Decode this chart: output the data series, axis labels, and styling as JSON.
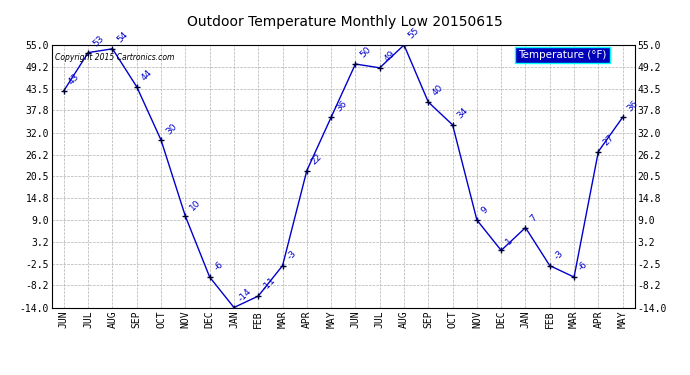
{
  "title": "Outdoor Temperature Monthly Low 20150615",
  "copyright": "Copyright 2015 Cartronics.com",
  "legend_label": "Temperature (°F)",
  "months": [
    "JUN",
    "JUL",
    "AUG",
    "SEP",
    "OCT",
    "NOV",
    "DEC",
    "JAN",
    "FEB",
    "MAR",
    "APR",
    "MAY",
    "JUN",
    "JUL",
    "AUG",
    "SEP",
    "OCT",
    "NOV",
    "DEC",
    "JAN",
    "FEB",
    "MAR",
    "APR",
    "MAY"
  ],
  "values": [
    43,
    53,
    54,
    44,
    30,
    10,
    -6,
    -14,
    -11,
    -3,
    22,
    36,
    50,
    49,
    55,
    40,
    34,
    9,
    1,
    7,
    -3,
    -6,
    27,
    36
  ],
  "ylim": [
    -14.0,
    55.0
  ],
  "yticks": [
    55.0,
    49.2,
    43.5,
    37.8,
    32.0,
    26.2,
    20.5,
    14.8,
    9.0,
    3.2,
    -2.5,
    -8.2,
    -14.0
  ],
  "line_color": "#0000cc",
  "marker_color": "#000033",
  "bg_color": "#ffffff",
  "grid_color": "#b0b0b0",
  "label_color": "#0000cc",
  "title_color": "#000000",
  "legend_bg": "#0000bb",
  "legend_text": "#ffffff",
  "figwidth": 6.9,
  "figheight": 3.75,
  "dpi": 100
}
